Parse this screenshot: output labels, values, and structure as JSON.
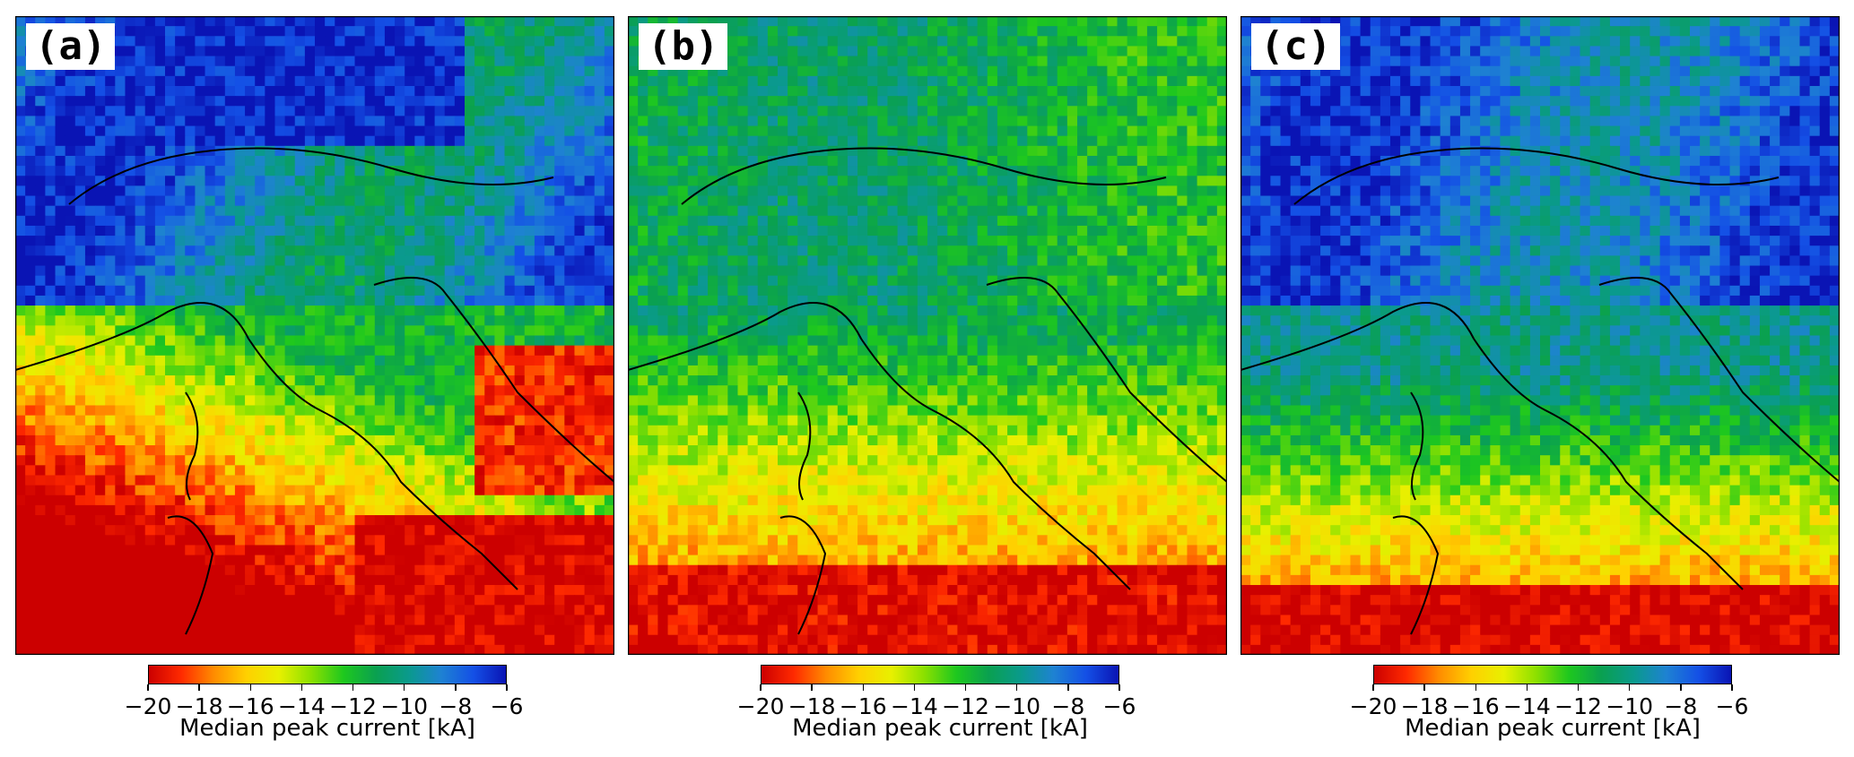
{
  "figure": {
    "panels": [
      {
        "label": "(a)",
        "colorbar": {
          "label": "Median peak current [kA]",
          "min": -20,
          "max": -6,
          "ticks": [
            "−20",
            "−18",
            "−16",
            "−14",
            "−12",
            "−10",
            "−8",
            "−6"
          ]
        }
      },
      {
        "label": "(b)",
        "colorbar": {
          "label": "Median peak current [kA]",
          "min": -20,
          "max": -6,
          "ticks": [
            "−20",
            "−18",
            "−16",
            "−14",
            "−12",
            "−10",
            "−8",
            "−6"
          ]
        }
      },
      {
        "label": "(c)",
        "colorbar": {
          "label": "Median peak current [kA]",
          "min": -20,
          "max": -6,
          "ticks": [
            "−20",
            "−18",
            "−16",
            "−14",
            "−12",
            "−10",
            "−8",
            "−6"
          ]
        }
      }
    ],
    "colormap": [
      "#cc0000",
      "#ff2a00",
      "#ff8c00",
      "#ffd000",
      "#e8f000",
      "#8ce000",
      "#1ec81e",
      "#0aa050",
      "#0a9a8c",
      "#1e82d2",
      "#1450e6",
      "#0a14b4"
    ],
    "coastline_color": "#000000"
  }
}
